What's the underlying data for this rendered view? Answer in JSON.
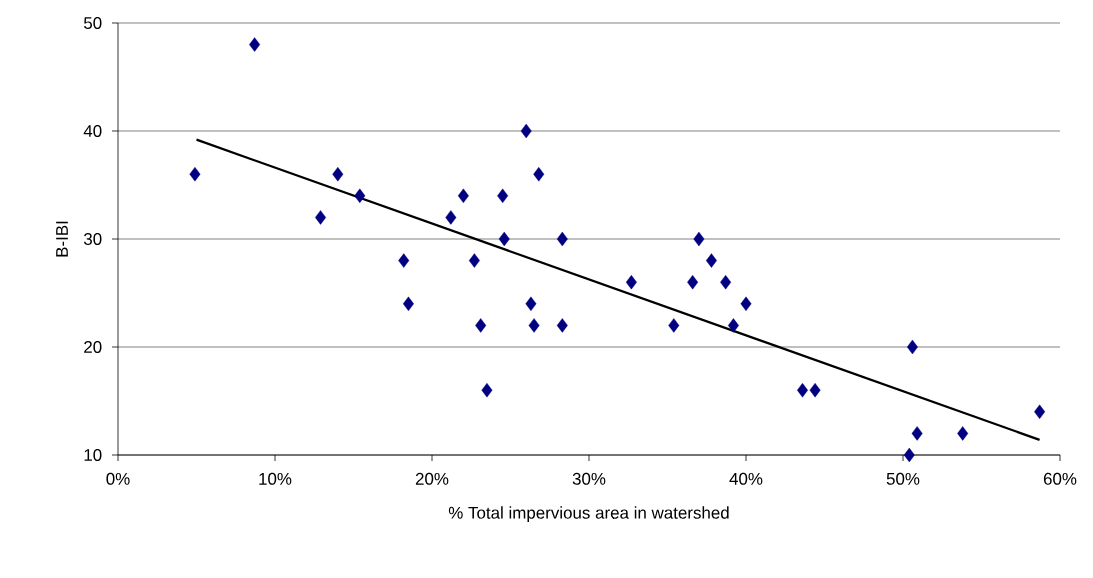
{
  "chart_data": {
    "type": "scatter",
    "xlabel": "% Total impervious area in watershed",
    "ylabel": "B-IBI",
    "xlim": [
      0,
      60
    ],
    "ylim": [
      10,
      50
    ],
    "xticks": [
      {
        "value": 0,
        "label": "0%"
      },
      {
        "value": 10,
        "label": "10%"
      },
      {
        "value": 20,
        "label": "20%"
      },
      {
        "value": 30,
        "label": "30%"
      },
      {
        "value": 40,
        "label": "40%"
      },
      {
        "value": 50,
        "label": "50%"
      },
      {
        "value": 60,
        "label": "60%"
      }
    ],
    "yticks": [
      10,
      20,
      30,
      40,
      50
    ],
    "grid": "y",
    "marker": "diamond",
    "series": [
      {
        "type": "scatter",
        "color": "#000080",
        "x": [
          4.9,
          8.7,
          12.9,
          14.0,
          15.4,
          18.2,
          18.5,
          21.2,
          22.0,
          22.7,
          23.1,
          23.5,
          24.5,
          24.6,
          26.0,
          26.3,
          26.5,
          26.8,
          28.3,
          28.3,
          32.7,
          35.4,
          36.6,
          37.0,
          37.8,
          38.7,
          39.2,
          40.0,
          43.6,
          44.4,
          50.6,
          50.4,
          50.9,
          53.8,
          58.7
        ],
        "values": [
          36,
          48,
          32,
          36,
          34,
          28,
          24,
          32,
          34,
          28,
          22,
          16,
          34,
          30,
          40,
          24,
          22,
          36,
          30,
          22,
          26,
          22,
          26,
          30,
          28,
          26,
          22,
          24,
          16,
          16,
          20,
          10,
          12,
          12,
          14
        ]
      },
      {
        "type": "line",
        "color": "#000000",
        "marker": "none",
        "x": [
          5.0,
          58.7
        ],
        "values": [
          39.2,
          11.4
        ]
      }
    ]
  }
}
